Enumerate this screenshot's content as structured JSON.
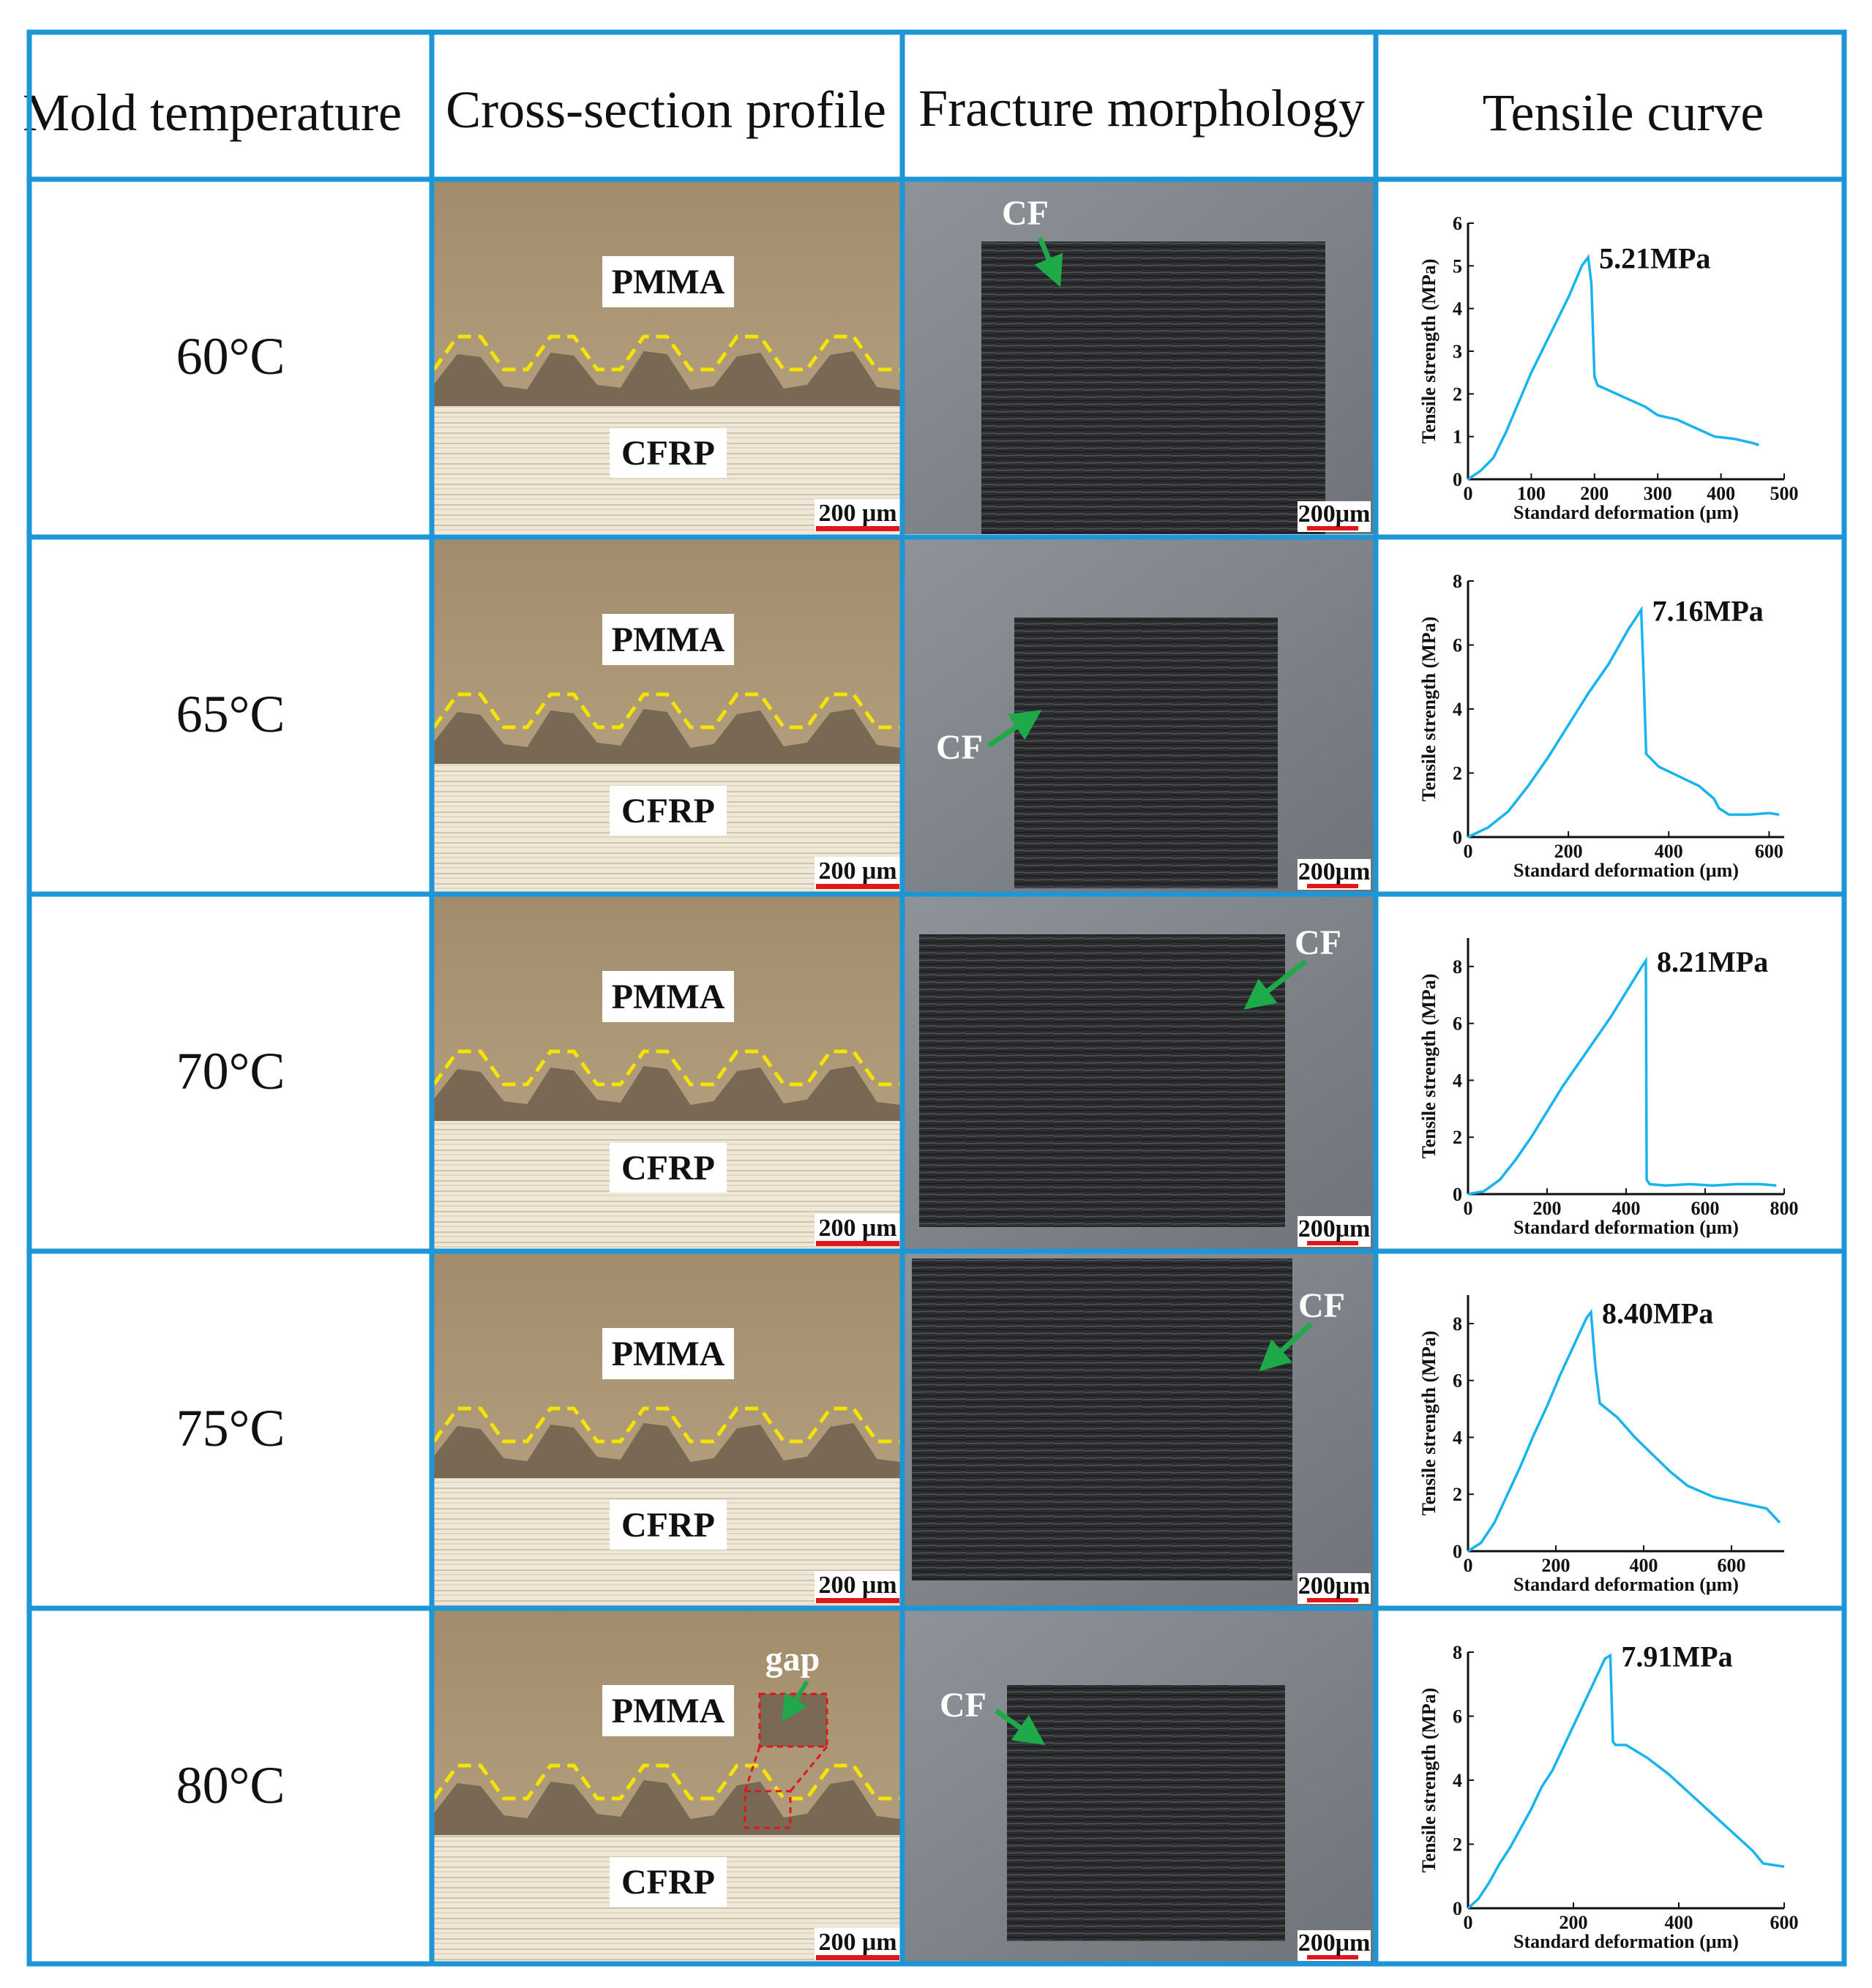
{
  "headers": [
    "Mold temperature",
    "Cross-section profile",
    "Fracture morphology",
    "Tensile curve"
  ],
  "rows": [
    {
      "temp": "60°C",
      "pmma": "PMMA",
      "cfrp": "CFRP",
      "scale_cs": "200 μm",
      "scale_fm": "200μm",
      "cf": "CF",
      "peak": "5.21MPa"
    },
    {
      "temp": "65°C",
      "pmma": "PMMA",
      "cfrp": "CFRP",
      "scale_cs": "200 μm",
      "scale_fm": "200μm",
      "cf": "CF",
      "peak": "7.16MPa"
    },
    {
      "temp": "70°C",
      "pmma": "PMMA",
      "cfrp": "CFRP",
      "scale_cs": "200 μm",
      "scale_fm": "200μm",
      "cf": "CF",
      "peak": "8.21MPa"
    },
    {
      "temp": "75°C",
      "pmma": "PMMA",
      "cfrp": "CFRP",
      "scale_cs": "200 μm",
      "scale_fm": "200μm",
      "cf": "CF",
      "peak": "8.40MPa"
    },
    {
      "temp": "80°C",
      "pmma": "PMMA",
      "cfrp": "CFRP",
      "scale_cs": "200 μm",
      "scale_fm": "200μm",
      "cf": "CF",
      "peak": "7.91MPa",
      "gap": "gap"
    }
  ],
  "colors": {
    "grid": "#1e96d6",
    "curve": "#18b4f0",
    "arrow": "#1faa4a",
    "dashed": "#f5e400",
    "scale_bar": "#e0161a"
  },
  "chart_data": [
    {
      "type": "line",
      "xlabel": "Standard deformation (μm)",
      "ylabel": "Tensile strength (MPa)",
      "xlim": [
        0,
        500
      ],
      "ylim": [
        0,
        6
      ],
      "xticks": [
        0,
        100,
        200,
        300,
        400,
        500
      ],
      "yticks": [
        0,
        1,
        2,
        3,
        4,
        5,
        6
      ],
      "annotation": "5.21MPa",
      "x": [
        0,
        20,
        40,
        60,
        80,
        100,
        120,
        140,
        160,
        180,
        190,
        195,
        200,
        205,
        220,
        250,
        280,
        300,
        330,
        360,
        390,
        420,
        450,
        460
      ],
      "y": [
        0,
        0.2,
        0.5,
        1.1,
        1.8,
        2.5,
        3.1,
        3.7,
        4.3,
        5.0,
        5.2,
        4.6,
        2.4,
        2.2,
        2.1,
        1.9,
        1.7,
        1.5,
        1.4,
        1.2,
        1.0,
        0.95,
        0.85,
        0.8
      ]
    },
    {
      "type": "line",
      "xlabel": "Standard deformation (μm)",
      "ylabel": "Tensile strength (MPa)",
      "xlim": [
        0,
        630
      ],
      "ylim": [
        0,
        8
      ],
      "xticks": [
        0,
        200,
        400,
        600
      ],
      "yticks": [
        0,
        2,
        4,
        6,
        8
      ],
      "annotation": "7.16MPa",
      "x": [
        0,
        40,
        80,
        120,
        160,
        200,
        240,
        280,
        320,
        345,
        350,
        355,
        380,
        420,
        460,
        490,
        500,
        520,
        560,
        600,
        620
      ],
      "y": [
        0,
        0.3,
        0.8,
        1.6,
        2.5,
        3.5,
        4.5,
        5.4,
        6.5,
        7.1,
        5.0,
        2.6,
        2.2,
        1.9,
        1.6,
        1.2,
        0.9,
        0.7,
        0.7,
        0.75,
        0.7
      ]
    },
    {
      "type": "line",
      "xlabel": "Standard deformation (μm)",
      "ylabel": "Tensile strength (MPa)",
      "xlim": [
        0,
        800
      ],
      "ylim": [
        0,
        9
      ],
      "xticks": [
        0,
        200,
        400,
        600,
        800
      ],
      "yticks": [
        0,
        2,
        4,
        6,
        8
      ],
      "annotation": "8.21MPa",
      "x": [
        0,
        40,
        80,
        120,
        160,
        200,
        240,
        280,
        320,
        360,
        400,
        440,
        450,
        452,
        460,
        500,
        560,
        620,
        680,
        740,
        780
      ],
      "y": [
        0,
        0.1,
        0.5,
        1.2,
        2.0,
        2.9,
        3.8,
        4.6,
        5.4,
        6.2,
        7.1,
        8.0,
        8.2,
        0.5,
        0.35,
        0.3,
        0.35,
        0.3,
        0.35,
        0.35,
        0.3
      ]
    },
    {
      "type": "line",
      "xlabel": "Standard deformation (μm)",
      "ylabel": "Tensile strength (MPa)",
      "xlim": [
        0,
        720
      ],
      "ylim": [
        0,
        9
      ],
      "xticks": [
        0,
        200,
        400,
        600
      ],
      "yticks": [
        0,
        2,
        4,
        6,
        8
      ],
      "annotation": "8.40MPa",
      "x": [
        0,
        30,
        60,
        90,
        120,
        150,
        180,
        210,
        240,
        270,
        280,
        290,
        300,
        340,
        380,
        420,
        460,
        500,
        560,
        620,
        680,
        710
      ],
      "y": [
        0,
        0.3,
        1.0,
        2.0,
        3.0,
        4.1,
        5.1,
        6.2,
        7.2,
        8.2,
        8.4,
        6.5,
        5.2,
        4.7,
        4.0,
        3.4,
        2.8,
        2.3,
        1.9,
        1.7,
        1.5,
        1.0
      ]
    },
    {
      "type": "line",
      "xlabel": "Standard deformation (μm)",
      "ylabel": "Tensile strength (MPa)",
      "xlim": [
        0,
        600
      ],
      "ylim": [
        0,
        8
      ],
      "xticks": [
        0,
        200,
        400,
        600
      ],
      "yticks": [
        0,
        2,
        4,
        6,
        8
      ],
      "annotation": "7.91MPa",
      "x": [
        0,
        20,
        40,
        60,
        80,
        100,
        120,
        140,
        160,
        180,
        200,
        220,
        240,
        260,
        270,
        275,
        280,
        300,
        340,
        380,
        420,
        460,
        500,
        540,
        560,
        600
      ],
      "y": [
        0,
        0.3,
        0.8,
        1.4,
        1.9,
        2.5,
        3.1,
        3.8,
        4.3,
        5.0,
        5.7,
        6.4,
        7.1,
        7.8,
        7.9,
        5.2,
        5.1,
        5.1,
        4.7,
        4.2,
        3.6,
        3.0,
        2.4,
        1.8,
        1.4,
        1.3
      ]
    }
  ]
}
